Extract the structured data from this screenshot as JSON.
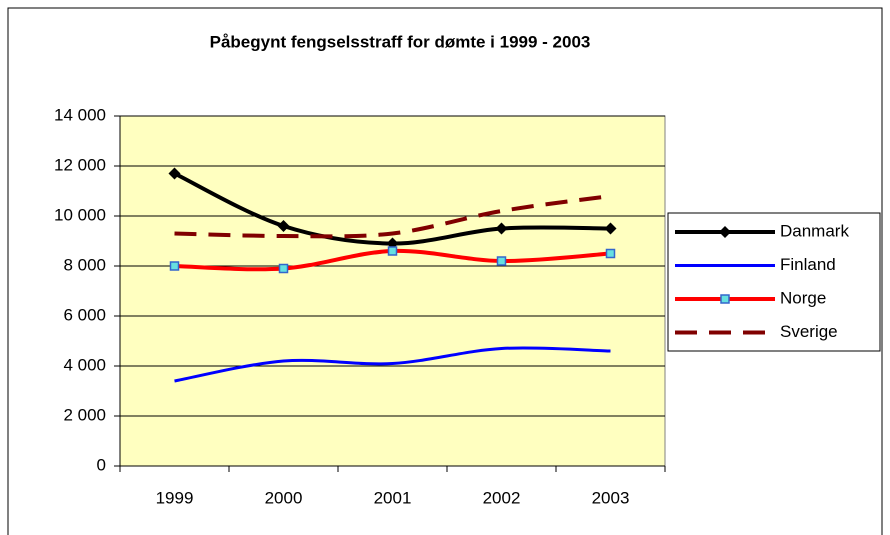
{
  "chart_data": {
    "type": "line",
    "title": "Påbegynt fengselsstraff for dømte i 1999 - 2003",
    "categories": [
      "1999",
      "2000",
      "2001",
      "2002",
      "2003"
    ],
    "series": [
      {
        "name": "Danmark",
        "color": "#000000",
        "values": [
          11700,
          9600,
          8900,
          9500,
          9500
        ]
      },
      {
        "name": "Finland",
        "color": "#0000ff",
        "values": [
          3400,
          4200,
          4100,
          4700,
          4600
        ]
      },
      {
        "name": "Norge",
        "color": "#ff0000",
        "values": [
          8000,
          7900,
          8600,
          8200,
          8500
        ]
      },
      {
        "name": "Sverige",
        "color": "#800000",
        "values": [
          9300,
          9200,
          9300,
          10200,
          10800
        ]
      }
    ],
    "ylim": [
      0,
      14000
    ],
    "yticks": [
      0,
      {
        "value": 2000,
        "label": "2 000"
      },
      {
        "value": 4000,
        "label": "4 000"
      },
      {
        "value": 6000,
        "label": "6 000"
      },
      {
        "value": 8000,
        "label": "8 000"
      },
      {
        "value": 10000,
        "label": "10 000"
      },
      {
        "value": 12000,
        "label": "12 000"
      },
      {
        "value": 14000,
        "label": "14 000"
      }
    ],
    "grid": true,
    "legend": "right"
  }
}
